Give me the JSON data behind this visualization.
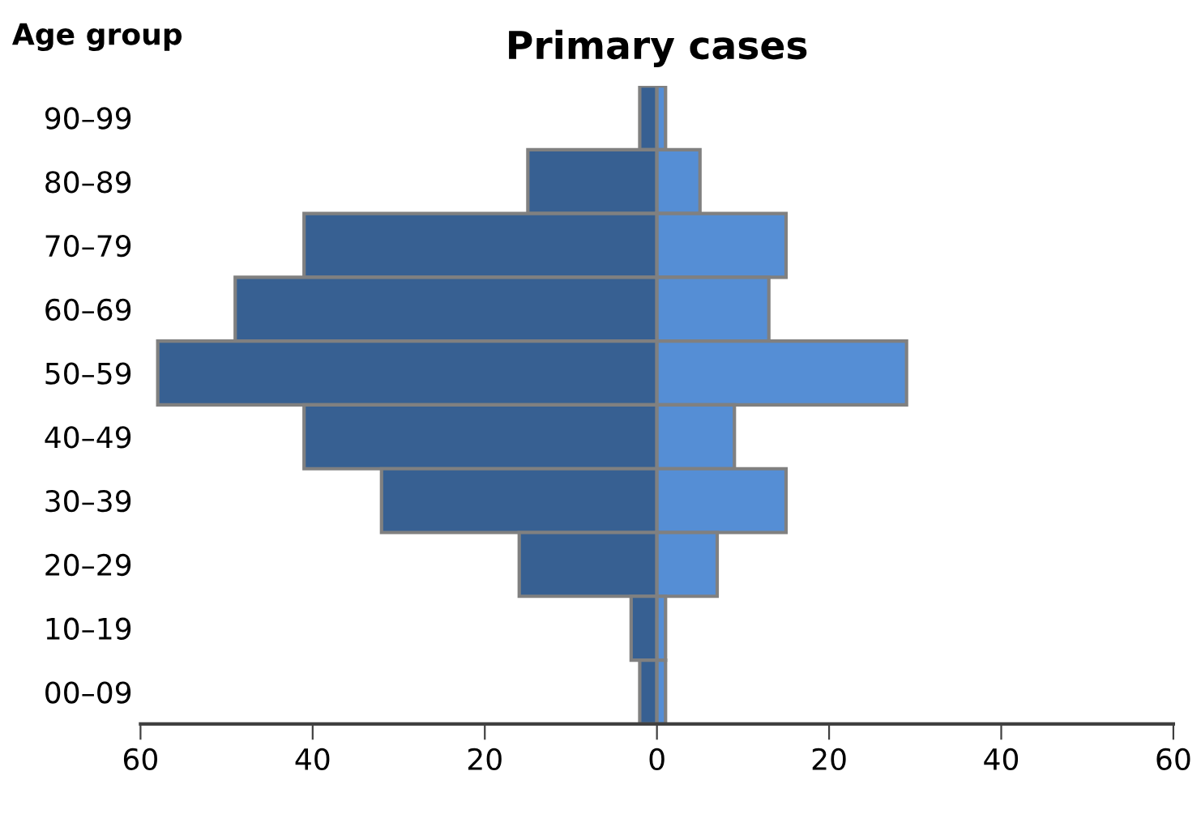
{
  "chart_data": {
    "type": "bar",
    "orientation": "horizontal",
    "stacked": true,
    "title": "Primary cases",
    "ylabel": "Age group",
    "categories": [
      "90–99",
      "80–89",
      "70–79",
      "60–69",
      "50–59",
      "40–49",
      "30–39",
      "20–29",
      "10–19",
      "00–09"
    ],
    "series": [
      {
        "color": "#376092",
        "values": [
          -2,
          -15,
          -41,
          -49,
          -58,
          -41,
          -32,
          -16,
          -3,
          -2
        ]
      },
      {
        "color": "#558ed5",
        "values": [
          1,
          5,
          15,
          13,
          29,
          9,
          15,
          7,
          1,
          1
        ]
      }
    ],
    "xlim": [
      -60,
      60
    ],
    "xticks": [
      {
        "value": -60,
        "label": "60"
      },
      {
        "value": -40,
        "label": "40"
      },
      {
        "value": -20,
        "label": "20"
      },
      0,
      20,
      40,
      60
    ],
    "grid": false,
    "legend": false
  }
}
